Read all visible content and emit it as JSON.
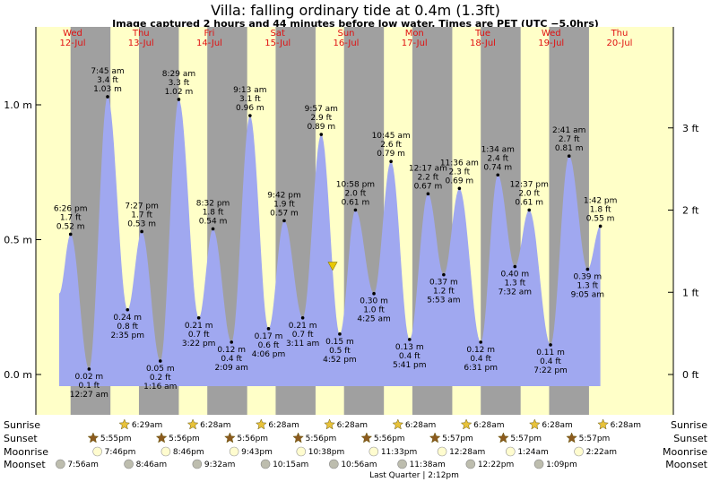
{
  "header": {
    "title": "Villa: falling  ordinary tide at 0.4m (1.3ft)",
    "subtitle": "Image captured 2 hours and 44 minutes before low water. Times are PET (UTC −5.0hrs)"
  },
  "chart_data": {
    "type": "area",
    "title": "Villa: falling  ordinary tide at 0.4m (1.3ft)",
    "subtitle": "Image captured 2 hours and 44 minutes before low water. Times are PET (UTC −5.0hrs)",
    "x_unit": "hours from Wed 12-Jul 00:00",
    "x_range": [
      0,
      204
    ],
    "ylim_m": [
      -0.14,
      1.3
    ],
    "ylabel_left_ticks": [
      "0.0 m",
      "0.5 m",
      "1.0 m"
    ],
    "ylabel_left_values": [
      0.0,
      0.5,
      1.0
    ],
    "ylabel_right_ticks": [
      "0 ft",
      "1 ft",
      "2 ft",
      "3 ft"
    ],
    "ylabel_right_values_m": [
      0.0,
      0.3048,
      0.6096,
      0.9144
    ],
    "days": [
      {
        "dow": "Wed",
        "date": "12-Jul",
        "center_hour": 0
      },
      {
        "dow": "Thu",
        "date": "13-Jul",
        "center_hour": 24
      },
      {
        "dow": "Fri",
        "date": "14-Jul",
        "center_hour": 48
      },
      {
        "dow": "Sat",
        "date": "15-Jul",
        "center_hour": 72
      },
      {
        "dow": "Sun",
        "date": "16-Jul",
        "center_hour": 96
      },
      {
        "dow": "Mon",
        "date": "17-Jul",
        "center_hour": 120
      },
      {
        "dow": "Tue",
        "date": "18-Jul",
        "center_hour": 144
      },
      {
        "dow": "Wed",
        "date": "19-Jul",
        "center_hour": 168
      },
      {
        "dow": "Thu",
        "date": "20-Jul",
        "center_hour": 192
      }
    ],
    "night_periods_hours": [
      [
        4.0,
        18.0
      ],
      [
        28.0,
        42.0
      ],
      [
        52.0,
        66.0
      ],
      [
        76.0,
        90.0
      ],
      [
        100.0,
        114.0
      ],
      [
        124.0,
        138.0
      ],
      [
        148.0,
        162.0
      ],
      [
        172.0,
        186.0
      ]
    ],
    "series": [
      {
        "extremes": [
          {
            "hour": 4.0,
            "m": 0.52,
            "time": "6:26 pm",
            "ft": "1.7 ft",
            "m_label": "0.52 m",
            "type": "high"
          },
          {
            "hour": 10.5,
            "m": 0.02,
            "time": "12:27 am",
            "ft": "0.1 ft",
            "m_label": "0.02 m",
            "type": "low"
          },
          {
            "hour": 17.0,
            "m": 1.03,
            "time": "7:45 am",
            "ft": "3.4 ft",
            "m_label": "1.03 m",
            "type": "high"
          },
          {
            "hour": 24.0,
            "m": 0.24,
            "time": "2:35 pm",
            "ft": "0.8 ft",
            "m_label": "0.24 m",
            "type": "low"
          },
          {
            "hour": 29.0,
            "m": 0.53,
            "time": "7:27 pm",
            "ft": "1.7 ft",
            "m_label": "0.53 m",
            "type": "high"
          },
          {
            "hour": 35.5,
            "m": 0.05,
            "time": "1:16 am",
            "ft": "0.2 ft",
            "m_label": "0.05 m",
            "type": "low"
          },
          {
            "hour": 42.0,
            "m": 1.02,
            "time": "8:29 am",
            "ft": "3.3 ft",
            "m_label": "1.02 m",
            "type": "high"
          },
          {
            "hour": 49.0,
            "m": 0.21,
            "time": "3:22 pm",
            "ft": "0.7 ft",
            "m_label": "0.21 m",
            "type": "low"
          },
          {
            "hour": 54.0,
            "m": 0.54,
            "time": "8:32 pm",
            "ft": "1.8 ft",
            "m_label": "0.54 m",
            "type": "high"
          },
          {
            "hour": 60.5,
            "m": 0.12,
            "time": "2:09 am",
            "ft": "0.4 ft",
            "m_label": "0.12 m",
            "type": "low"
          },
          {
            "hour": 67.0,
            "m": 0.96,
            "time": "9:13 am",
            "ft": "3.1 ft",
            "m_label": "0.96 m",
            "type": "high"
          },
          {
            "hour": 73.5,
            "m": 0.17,
            "time": "4:06 pm",
            "ft": "0.6 ft",
            "m_label": "0.17 m",
            "type": "low"
          },
          {
            "hour": 79.0,
            "m": 0.57,
            "time": "9:42 pm",
            "ft": "1.9 ft",
            "m_label": "0.57 m",
            "type": "high"
          },
          {
            "hour": 85.5,
            "m": 0.21,
            "time": "3:11 am",
            "ft": "0.7 ft",
            "m_label": "0.21 m",
            "type": "low"
          },
          {
            "hour": 92.0,
            "m": 0.89,
            "time": "9:57 am",
            "ft": "2.9 ft",
            "m_label": "0.89 m",
            "type": "high"
          },
          {
            "hour": 98.5,
            "m": 0.15,
            "time": "4:52 pm",
            "ft": "0.5 ft",
            "m_label": "0.15 m",
            "type": "low"
          },
          {
            "hour": 104.0,
            "m": 0.61,
            "time": "10:58 pm",
            "ft": "2.0 ft",
            "m_label": "0.61 m",
            "type": "high"
          },
          {
            "hour": 110.5,
            "m": 0.3,
            "time": "4:25 am",
            "ft": "1.0 ft",
            "m_label": "0.30 m",
            "type": "low"
          },
          {
            "hour": 116.5,
            "m": 0.79,
            "time": "10:45 am",
            "ft": "2.6 ft",
            "m_label": "0.79 m",
            "type": "high"
          },
          {
            "hour": 123.0,
            "m": 0.13,
            "time": "5:41 pm",
            "ft": "0.4 ft",
            "m_label": "0.13 m",
            "type": "low"
          },
          {
            "hour": 129.5,
            "m": 0.67,
            "time": "12:17 am",
            "ft": "2.2 ft",
            "m_label": "0.67 m",
            "type": "high"
          },
          {
            "hour": 135.0,
            "m": 0.37,
            "time": "5:53 am",
            "ft": "1.2 ft",
            "m_label": "0.37 m",
            "type": "low"
          },
          {
            "hour": 140.5,
            "m": 0.69,
            "time": "11:36 am",
            "ft": "2.3 ft",
            "m_label": "0.69 m",
            "type": "high"
          },
          {
            "hour": 148.0,
            "m": 0.12,
            "time": "6:31 pm",
            "ft": "0.4 ft",
            "m_label": "0.12 m",
            "type": "low"
          },
          {
            "hour": 154.0,
            "m": 0.74,
            "time": "1:34 am",
            "ft": "2.4 ft",
            "m_label": "0.74 m",
            "type": "high"
          },
          {
            "hour": 160.0,
            "m": 0.4,
            "time": "7:32 am",
            "ft": "1.3 ft",
            "m_label": "0.40 m",
            "type": "low"
          },
          {
            "hour": 165.0,
            "m": 0.61,
            "time": "12:37 pm",
            "ft": "2.0 ft",
            "m_label": "0.61 m",
            "type": "high"
          },
          {
            "hour": 172.5,
            "m": 0.11,
            "time": "7:22 pm",
            "ft": "0.4 ft",
            "m_label": "0.11 m",
            "type": "low"
          },
          {
            "hour": 179.0,
            "m": 0.81,
            "time": "2:41 am",
            "ft": "2.7 ft",
            "m_label": "0.81 m",
            "type": "high"
          },
          {
            "hour": 185.5,
            "m": 0.39,
            "time": "9:05 am",
            "ft": "1.3 ft",
            "m_label": "0.39 m",
            "type": "low"
          },
          {
            "hour": 190.0,
            "m": 0.55,
            "time": "1:42 pm",
            "ft": "1.8 ft",
            "m_label": "0.55 m",
            "type": "high"
          }
        ]
      }
    ],
    "series_start_hour": 0,
    "series_start_m": 0.3,
    "marker": {
      "hour": 96.0,
      "m": 0.4
    },
    "grid": false
  },
  "astro": {
    "row_labels": [
      "Sunrise",
      "Sunset",
      "Moonrise",
      "Moonset"
    ],
    "sunrise": [
      {
        "hour": 16.0,
        "time": "6:29am"
      },
      {
        "hour": 40.0,
        "time": "6:28am"
      },
      {
        "hour": 64.0,
        "time": "6:28am"
      },
      {
        "hour": 88.0,
        "time": "6:28am"
      },
      {
        "hour": 112.0,
        "time": "6:28am"
      },
      {
        "hour": 136.0,
        "time": "6:28am"
      },
      {
        "hour": 160.0,
        "time": "6:28am"
      },
      {
        "hour": 184.0,
        "time": "6:28am"
      }
    ],
    "sunset": [
      {
        "hour": 5.0,
        "time": "5:55pm"
      },
      {
        "hour": 29.0,
        "time": "5:56pm"
      },
      {
        "hour": 53.0,
        "time": "5:56pm"
      },
      {
        "hour": 77.0,
        "time": "5:56pm"
      },
      {
        "hour": 101.0,
        "time": "5:56pm"
      },
      {
        "hour": 125.0,
        "time": "5:57pm"
      },
      {
        "hour": 149.0,
        "time": "5:57pm"
      },
      {
        "hour": 173.0,
        "time": "5:57pm"
      }
    ],
    "moonrise": [
      {
        "hour": 6.5,
        "time": "7:46pm"
      },
      {
        "hour": 30.5,
        "time": "8:46pm"
      },
      {
        "hour": 54.5,
        "time": "9:43pm"
      },
      {
        "hour": 78.0,
        "time": "10:38pm"
      },
      {
        "hour": 103.5,
        "time": "11:33pm"
      },
      {
        "hour": 127.5,
        "time": "12:28am"
      },
      {
        "hour": 151.5,
        "time": "1:24am"
      },
      {
        "hour": 175.5,
        "time": "2:22am"
      }
    ],
    "moonset": [
      {
        "hour": -6.5,
        "time": "7:56am"
      },
      {
        "hour": 17.5,
        "time": "8:46am"
      },
      {
        "hour": 41.5,
        "time": "9:32am"
      },
      {
        "hour": 65.5,
        "time": "10:15am"
      },
      {
        "hour": 89.5,
        "time": "10:56am"
      },
      {
        "hour": 113.5,
        "time": "11:38am"
      },
      {
        "hour": 137.5,
        "time": "12:22pm"
      },
      {
        "hour": 161.5,
        "time": "1:09pm"
      }
    ],
    "moon_phase_note": "Last Quarter | 2:12pm",
    "colors": {
      "sun_star": "#e8c23a",
      "set_star": "#8b5a1e",
      "moonrise_fill": "#fffccf",
      "moonset_fill": "#bdbdae"
    }
  },
  "colors": {
    "day_band": "#ffffc8",
    "night_band": "#a0a0a0",
    "tide_fill": "#a0a8f0",
    "day_label": "#e01010",
    "marker": "#e8c800"
  }
}
